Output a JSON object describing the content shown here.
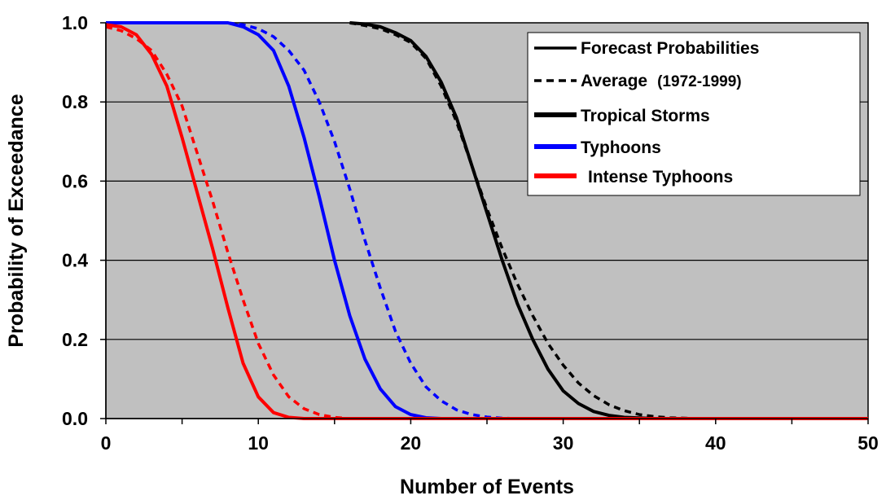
{
  "chart_data": {
    "type": "line",
    "title": "",
    "xlabel": "Number of Events",
    "ylabel": "Probability of Exceedance",
    "xlim": [
      0,
      50
    ],
    "ylim": [
      0.0,
      1.0
    ],
    "x_ticks": [
      0,
      10,
      20,
      30,
      40,
      50
    ],
    "y_ticks": [
      0.0,
      0.2,
      0.4,
      0.6,
      0.8,
      1.0
    ],
    "x_tick_labels": [
      "0",
      "10",
      "20",
      "30",
      "40",
      "50"
    ],
    "y_tick_labels": [
      "0.0",
      "0.2",
      "0.4",
      "0.6",
      "0.8",
      "1.0"
    ],
    "grid": "horizontal",
    "plot_background": "#c0c0c0",
    "legend": {
      "position": "top-right",
      "style_entries": [
        {
          "label": "Forecast Probabilities",
          "style": "solid"
        },
        {
          "label_main": "Average",
          "label_detail": "(1972-1999)",
          "style": "dashed"
        }
      ],
      "color_entries": [
        {
          "label": "Tropical Storms",
          "color": "#000000"
        },
        {
          "label": "Typhoons",
          "color": "#0000ff"
        },
        {
          "label": "Intense Typhoons",
          "color": "#ff0000"
        }
      ]
    },
    "series": [
      {
        "group": "Tropical Storms",
        "kind": "Forecast Probabilities",
        "color": "#000000",
        "style": "solid",
        "x": [
          16,
          17,
          18,
          19,
          20,
          21,
          22,
          23,
          24,
          25,
          26,
          27,
          28,
          29,
          30,
          31,
          32,
          33,
          34,
          36,
          38,
          50
        ],
        "y": [
          1.0,
          0.997,
          0.99,
          0.975,
          0.955,
          0.915,
          0.85,
          0.76,
          0.64,
          0.52,
          0.4,
          0.29,
          0.2,
          0.125,
          0.07,
          0.038,
          0.018,
          0.008,
          0.003,
          0.0,
          0.0,
          0.0
        ]
      },
      {
        "group": "Tropical Storms",
        "kind": "Average",
        "color": "#000000",
        "style": "dashed",
        "x": [
          16,
          17,
          18,
          19,
          20,
          21,
          22,
          23,
          24,
          25,
          26,
          27,
          28,
          29,
          30,
          31,
          32,
          33,
          34,
          35,
          36,
          37,
          38,
          39,
          50
        ],
        "y": [
          1.0,
          0.993,
          0.985,
          0.97,
          0.95,
          0.91,
          0.84,
          0.75,
          0.64,
          0.53,
          0.43,
          0.34,
          0.26,
          0.19,
          0.135,
          0.09,
          0.058,
          0.035,
          0.02,
          0.01,
          0.005,
          0.002,
          0.001,
          0.0,
          0.0
        ]
      },
      {
        "group": "Typhoons",
        "kind": "Forecast Probabilities",
        "color": "#0000ff",
        "style": "solid",
        "x": [
          0,
          8,
          9,
          10,
          11,
          12,
          13,
          14,
          15,
          16,
          17,
          18,
          19,
          20,
          21,
          22,
          50
        ],
        "y": [
          1.0,
          1.0,
          0.99,
          0.97,
          0.93,
          0.84,
          0.71,
          0.56,
          0.4,
          0.26,
          0.15,
          0.075,
          0.03,
          0.01,
          0.002,
          0.0,
          0.0
        ]
      },
      {
        "group": "Typhoons",
        "kind": "Average",
        "color": "#0000ff",
        "style": "dashed",
        "x": [
          8,
          9,
          10,
          11,
          12,
          13,
          14,
          15,
          16,
          17,
          18,
          19,
          20,
          21,
          22,
          23,
          24,
          25,
          26,
          27,
          50
        ],
        "y": [
          1.0,
          0.995,
          0.985,
          0.965,
          0.93,
          0.88,
          0.8,
          0.7,
          0.58,
          0.45,
          0.33,
          0.22,
          0.14,
          0.08,
          0.045,
          0.022,
          0.01,
          0.004,
          0.001,
          0.0,
          0.0
        ]
      },
      {
        "group": "Intense Typhoons",
        "kind": "Forecast Probabilities",
        "color": "#ff0000",
        "style": "solid",
        "x": [
          0,
          1,
          2,
          3,
          4,
          5,
          6,
          7,
          8,
          9,
          10,
          11,
          12,
          13,
          14,
          50
        ],
        "y": [
          0.995,
          0.99,
          0.97,
          0.92,
          0.84,
          0.71,
          0.57,
          0.43,
          0.28,
          0.14,
          0.055,
          0.015,
          0.003,
          0.0,
          0.0,
          0.0
        ]
      },
      {
        "group": "Intense Typhoons",
        "kind": "Average",
        "color": "#ff0000",
        "style": "dashed",
        "x": [
          0,
          1,
          2,
          3,
          4,
          5,
          6,
          7,
          8,
          9,
          10,
          11,
          12,
          13,
          14,
          15,
          16,
          50
        ],
        "y": [
          0.99,
          0.98,
          0.96,
          0.93,
          0.87,
          0.79,
          0.67,
          0.55,
          0.42,
          0.3,
          0.19,
          0.11,
          0.055,
          0.025,
          0.01,
          0.003,
          0.0,
          0.0
        ]
      }
    ]
  }
}
